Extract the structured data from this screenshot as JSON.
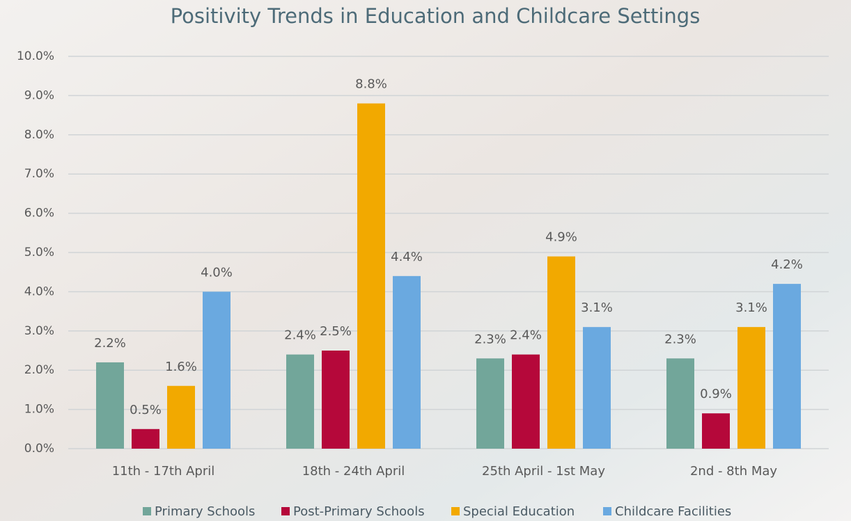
{
  "chart_data": {
    "type": "bar",
    "title": "Positivity Trends in Education and Childcare Settings",
    "categories": [
      "11th - 17th April",
      "18th - 24th April",
      "25th April - 1st May",
      "2nd - 8th May"
    ],
    "series": [
      {
        "name": "Primary Schools",
        "color": "#72a69a",
        "values": [
          2.2,
          2.4,
          2.3,
          2.3
        ],
        "value_labels": [
          "2.2%",
          "2.4%",
          "2.3%",
          "2.3%"
        ]
      },
      {
        "name": "Post-Primary Schools",
        "color": "#b5083a",
        "values": [
          0.5,
          2.5,
          2.4,
          0.9
        ],
        "value_labels": [
          "0.5%",
          "2.5%",
          "2.4%",
          "0.9%"
        ]
      },
      {
        "name": "Special Education",
        "color": "#f2a900",
        "values": [
          1.6,
          8.8,
          4.9,
          3.1
        ],
        "value_labels": [
          "1.6%",
          "8.8%",
          "4.9%",
          "3.1%"
        ]
      },
      {
        "name": "Childcare Facilities",
        "color": "#6aa9e0",
        "values": [
          4.0,
          4.4,
          3.1,
          4.2
        ],
        "value_labels": [
          "4.0%",
          "4.4%",
          "3.1%",
          "4.2%"
        ]
      }
    ],
    "ylim": [
      0,
      10
    ],
    "yticks": [
      {
        "value": 0,
        "label": "0.0%"
      },
      {
        "value": 1,
        "label": "1.0%"
      },
      {
        "value": 2,
        "label": "2.0%"
      },
      {
        "value": 3,
        "label": "3.0%"
      },
      {
        "value": 4,
        "label": "4.0%"
      },
      {
        "value": 5,
        "label": "5.0%"
      },
      {
        "value": 6,
        "label": "6.0%"
      },
      {
        "value": 7,
        "label": "7.0%"
      },
      {
        "value": 8,
        "label": "8.0%"
      },
      {
        "value": 9,
        "label": "9.0%"
      },
      {
        "value": 10,
        "label": "10.0%"
      }
    ],
    "grid": true,
    "legend": "bottom"
  }
}
